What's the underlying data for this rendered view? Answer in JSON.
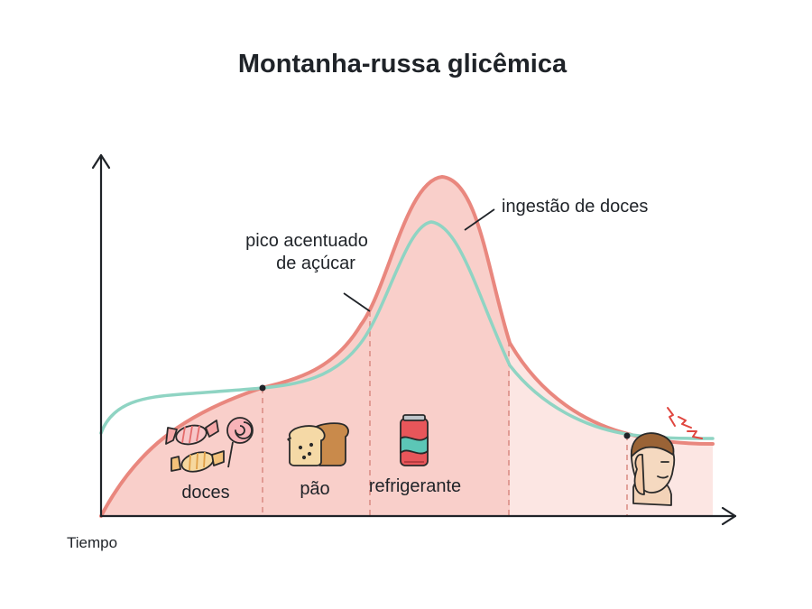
{
  "title": "Montanha-russa glicêmica",
  "x_axis_label": "Tiempo",
  "annotations": {
    "peak_line1": "pico acentuado",
    "peak_line2": "de açúcar",
    "intake": "ingestão de doces"
  },
  "foods": [
    {
      "label": "doces",
      "icon": "candy-lollipop-icon"
    },
    {
      "label": "pão",
      "icon": "bread-icon"
    },
    {
      "label": "refrigerante",
      "icon": "soda-can-icon"
    }
  ],
  "end_icon": "headache-person-icon",
  "colors": {
    "sugar_curve": "#e9877e",
    "area_fill": "#f9cfca",
    "area_fill_light": "#fce6e3",
    "glucose_curve": "#8fd4c3",
    "axis": "#1f2328",
    "divider": "#d98a82"
  }
}
